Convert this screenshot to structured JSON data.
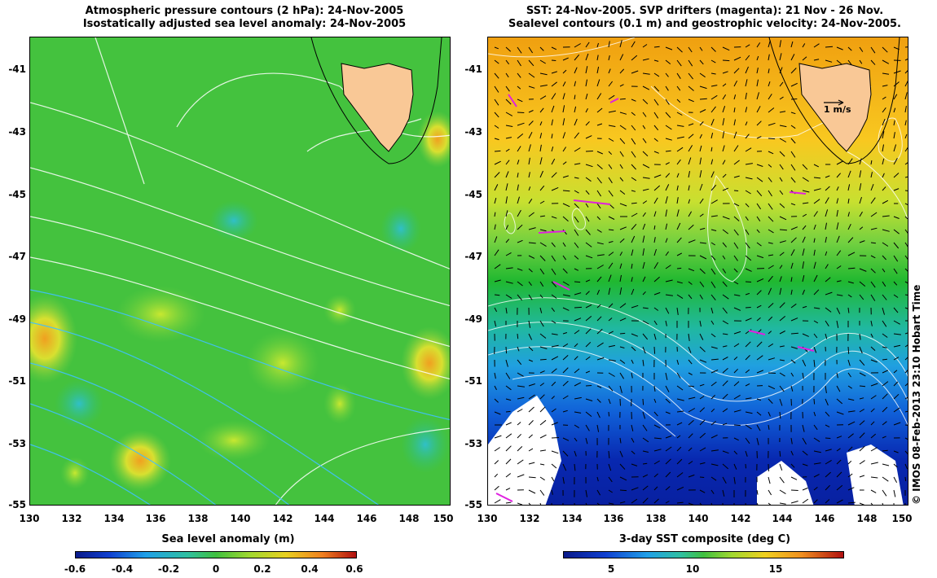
{
  "left_panel": {
    "title_line1": "Atmospheric pressure contours (2 hPa): 24-Nov-2005",
    "title_line2": "Isostatically adjusted sea level anomaly: 24-Nov-2005",
    "colorbar_title": "Sea level anomaly (m)",
    "colorbar_ticks": [
      "-0.6",
      "-0.4",
      "-0.2",
      "0",
      "0.2",
      "0.4",
      "0.6"
    ],
    "colorbar_range": [
      -0.6,
      0.6
    ]
  },
  "right_panel": {
    "title_line1": "SST: 24-Nov-2005. SVP drifters (magenta): 21 Nov - 26 Nov.",
    "title_line2": "Sealevel contours (0.1 m) and geostrophic velocity: 24-Nov-2005.",
    "colorbar_title": "3-day SST composite (deg C)",
    "colorbar_ticks": [
      "5",
      "10",
      "15"
    ],
    "colorbar_range": [
      1.4,
      19.8
    ],
    "scale_label": "1 m/s"
  },
  "axes": {
    "lat_ticks": [
      "-41",
      "-43",
      "-45",
      "-47",
      "-49",
      "-51",
      "-53",
      "-55"
    ],
    "lon_ticks": [
      "130",
      "132",
      "134",
      "136",
      "138",
      "140",
      "142",
      "144",
      "146",
      "148",
      "150"
    ],
    "lat_range": [
      -55,
      -40.1
    ],
    "lon_range": [
      130,
      150
    ]
  },
  "credit": "© IMOS 08-Feb-2013 23:10 Hobart Time",
  "colors": {
    "land": "#f9c896",
    "sla_bg": "#40c040",
    "sst_warm": "#f5b800",
    "sst_mid": "#2bbf30",
    "sst_cold": "#0a2fbf",
    "drifters": "#e020e0"
  }
}
